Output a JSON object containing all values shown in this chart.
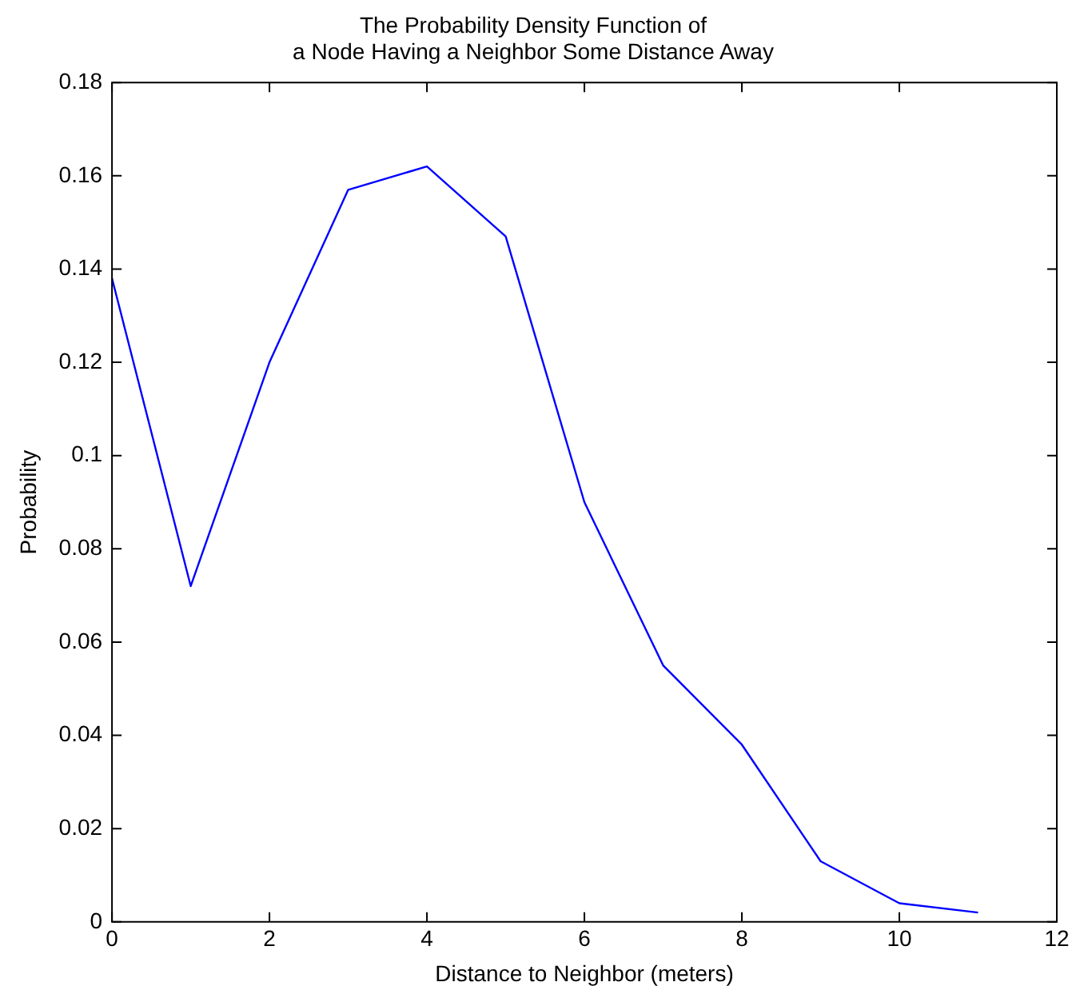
{
  "chart_data": {
    "type": "line",
    "title": "The Probability Density Function of\na Node Having a Neighbor Some Distance Away",
    "xlabel": "Distance to Neighbor (meters)",
    "ylabel": "Probability",
    "x": [
      0,
      1,
      2,
      3,
      4,
      5,
      6,
      7,
      8,
      9,
      10,
      11
    ],
    "series": [
      {
        "color": "#0000ff",
        "values": [
          0.138,
          0.072,
          0.12,
          0.157,
          0.162,
          0.147,
          0.09,
          0.055,
          0.038,
          0.013,
          0.004,
          0.002
        ]
      }
    ],
    "xlim": [
      0,
      12
    ],
    "xticks": [
      0,
      2,
      4,
      6,
      8,
      10,
      12
    ],
    "ylim": [
      0,
      0.18
    ],
    "yticks": [
      0,
      0.02,
      0.04,
      0.06,
      0.08,
      0.1,
      0.12,
      0.14,
      0.16,
      0.18
    ],
    "grid": false,
    "legend": false,
    "marker": "none",
    "line_style": "solid"
  }
}
